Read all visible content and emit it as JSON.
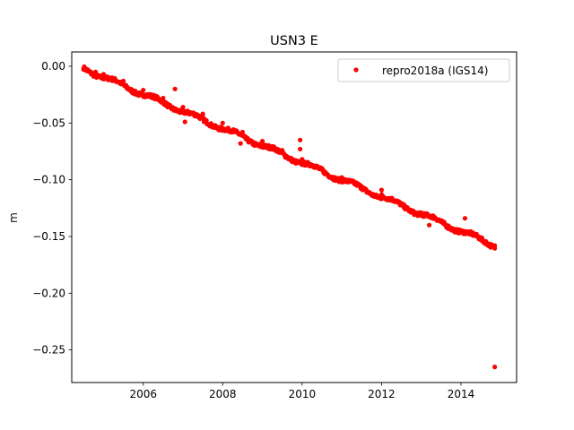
{
  "chart_data": {
    "type": "scatter",
    "title": "USN3 E",
    "xlabel": "",
    "ylabel": "m",
    "xlim": [
      2004.2,
      2015.4
    ],
    "ylim": [
      -0.2787,
      0.0126
    ],
    "x_ticks": [
      2006,
      2008,
      2010,
      2012,
      2014
    ],
    "x_tick_labels": [
      "2006",
      "2008",
      "2010",
      "2012",
      "2014"
    ],
    "y_ticks": [
      0.0,
      -0.05,
      -0.1,
      -0.15,
      -0.2,
      -0.25
    ],
    "y_tick_labels": [
      "0.00",
      "−0.05",
      "−0.10",
      "−0.15",
      "−0.20",
      "−0.25"
    ],
    "grid": false,
    "legend_position": "top-right",
    "series": [
      {
        "name": "repro2018a (IGS14)",
        "color": "#ff0000",
        "marker": "circle",
        "trend": {
          "x_start": 2004.5,
          "x_end": 2014.85,
          "y_start": -0.002,
          "y_end": -0.158
        },
        "points": [
          {
            "x": 2004.5,
            "y": -0.002
          },
          {
            "x": 2004.6,
            "y": -0.003
          },
          {
            "x": 2004.8,
            "y": -0.005
          },
          {
            "x": 2005.0,
            "y": -0.007
          },
          {
            "x": 2005.5,
            "y": -0.013
          },
          {
            "x": 2006.0,
            "y": -0.021
          },
          {
            "x": 2006.5,
            "y": -0.028
          },
          {
            "x": 2007.0,
            "y": -0.036
          },
          {
            "x": 2007.5,
            "y": -0.042
          },
          {
            "x": 2008.0,
            "y": -0.05
          },
          {
            "x": 2008.5,
            "y": -0.058
          },
          {
            "x": 2009.0,
            "y": -0.066
          },
          {
            "x": 2009.5,
            "y": -0.074
          },
          {
            "x": 2010.0,
            "y": -0.082
          },
          {
            "x": 2010.5,
            "y": -0.09
          },
          {
            "x": 2011.0,
            "y": -0.098
          },
          {
            "x": 2011.5,
            "y": -0.106
          },
          {
            "x": 2012.0,
            "y": -0.113
          },
          {
            "x": 2012.5,
            "y": -0.121
          },
          {
            "x": 2013.0,
            "y": -0.129
          },
          {
            "x": 2013.5,
            "y": -0.136
          },
          {
            "x": 2014.0,
            "y": -0.145
          },
          {
            "x": 2014.5,
            "y": -0.153
          },
          {
            "x": 2014.85,
            "y": -0.158
          },
          {
            "x": 2006.8,
            "y": -0.02
          },
          {
            "x": 2007.05,
            "y": -0.049
          },
          {
            "x": 2008.45,
            "y": -0.068
          },
          {
            "x": 2009.95,
            "y": -0.065
          },
          {
            "x": 2009.95,
            "y": -0.073
          },
          {
            "x": 2012.0,
            "y": -0.109
          },
          {
            "x": 2013.2,
            "y": -0.14
          },
          {
            "x": 2014.1,
            "y": -0.134
          },
          {
            "x": 2014.85,
            "y": -0.265
          }
        ]
      }
    ]
  }
}
